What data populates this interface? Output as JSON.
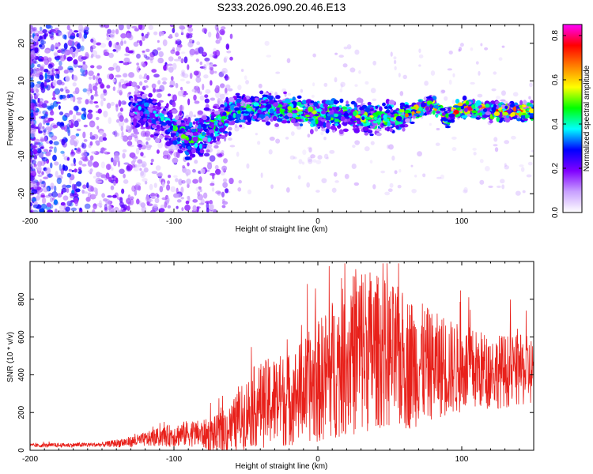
{
  "title": "S233.2026.090.20.46.E13",
  "chart_data": [
    {
      "type": "heatmap",
      "name": "spectrogram",
      "xlabel": "Height of straight line (km)",
      "ylabel": "Frequency (Hz)",
      "xlim": [
        -200,
        150
      ],
      "ylim": [
        -25,
        25
      ],
      "xticks": [
        -200,
        -100,
        0,
        100
      ],
      "xtick_labels": [
        "-200",
        "-100",
        "0",
        "100"
      ],
      "yticks": [
        -20,
        -10,
        0,
        10,
        20
      ],
      "ytick_labels": [
        "-20",
        "-10",
        "0",
        "10",
        "20"
      ],
      "colorbar": {
        "label": "Normalized spectral amplitude",
        "range": [
          0,
          0.85
        ],
        "ticks": [
          0.0,
          0.2,
          0.4,
          0.6,
          0.8
        ],
        "tick_labels": [
          "0.0",
          "0.2",
          "0.4",
          "0.6",
          "0.8"
        ],
        "colors": [
          "#ffffff",
          "#c8a0ff",
          "#8000ff",
          "#0000ff",
          "#00ffff",
          "#00ff00",
          "#ffff00",
          "#ff8000",
          "#ff0000",
          "#ff00ff"
        ]
      },
      "ridge": {
        "description_points_km_hz": [
          [
            -120,
            2
          ],
          [
            -100,
            -2
          ],
          [
            -90,
            -6
          ],
          [
            -80,
            -4
          ],
          [
            -60,
            2
          ],
          [
            -40,
            3
          ],
          [
            -20,
            2
          ],
          [
            0,
            1
          ],
          [
            20,
            1
          ],
          [
            40,
            0
          ],
          [
            60,
            1
          ],
          [
            80,
            4
          ],
          [
            90,
            0
          ],
          [
            100,
            3
          ],
          [
            120,
            2
          ],
          [
            150,
            2
          ]
        ]
      }
    },
    {
      "type": "line",
      "name": "snr",
      "xlabel": "Height of straight line (km)",
      "ylabel": "SNR (10 * v/v)",
      "xlim": [
        -200,
        150
      ],
      "ylim": [
        0,
        1000
      ],
      "xticks": [
        -200,
        -100,
        0,
        100
      ],
      "xtick_labels": [
        "-200",
        "-100",
        "0",
        "100"
      ],
      "yticks": [
        0,
        200,
        400,
        600,
        800
      ],
      "ytick_labels": [
        "0",
        "200",
        "400",
        "600",
        "800"
      ],
      "color": "#e8201a",
      "envelope_km_snr": [
        [
          -200,
          25
        ],
        [
          -150,
          30
        ],
        [
          -130,
          45
        ],
        [
          -110,
          70
        ],
        [
          -90,
          90
        ],
        [
          -70,
          80
        ],
        [
          -60,
          120
        ],
        [
          -45,
          230
        ],
        [
          -30,
          260
        ],
        [
          -20,
          270
        ],
        [
          -10,
          320
        ],
        [
          0,
          360
        ],
        [
          10,
          430
        ],
        [
          20,
          480
        ],
        [
          30,
          540
        ],
        [
          40,
          530
        ],
        [
          60,
          470
        ],
        [
          80,
          450
        ],
        [
          100,
          430
        ],
        [
          120,
          420
        ],
        [
          150,
          420
        ]
      ],
      "amplitude_km_snr": [
        [
          -200,
          8
        ],
        [
          -150,
          10
        ],
        [
          -120,
          30
        ],
        [
          -100,
          50
        ],
        [
          -80,
          60
        ],
        [
          -60,
          110
        ],
        [
          -45,
          170
        ],
        [
          -30,
          200
        ],
        [
          -20,
          200
        ],
        [
          -10,
          220
        ],
        [
          0,
          260
        ],
        [
          10,
          300
        ],
        [
          20,
          320
        ],
        [
          30,
          380
        ],
        [
          40,
          330
        ],
        [
          60,
          300
        ],
        [
          80,
          230
        ],
        [
          100,
          190
        ],
        [
          120,
          160
        ],
        [
          150,
          150
        ]
      ]
    }
  ]
}
